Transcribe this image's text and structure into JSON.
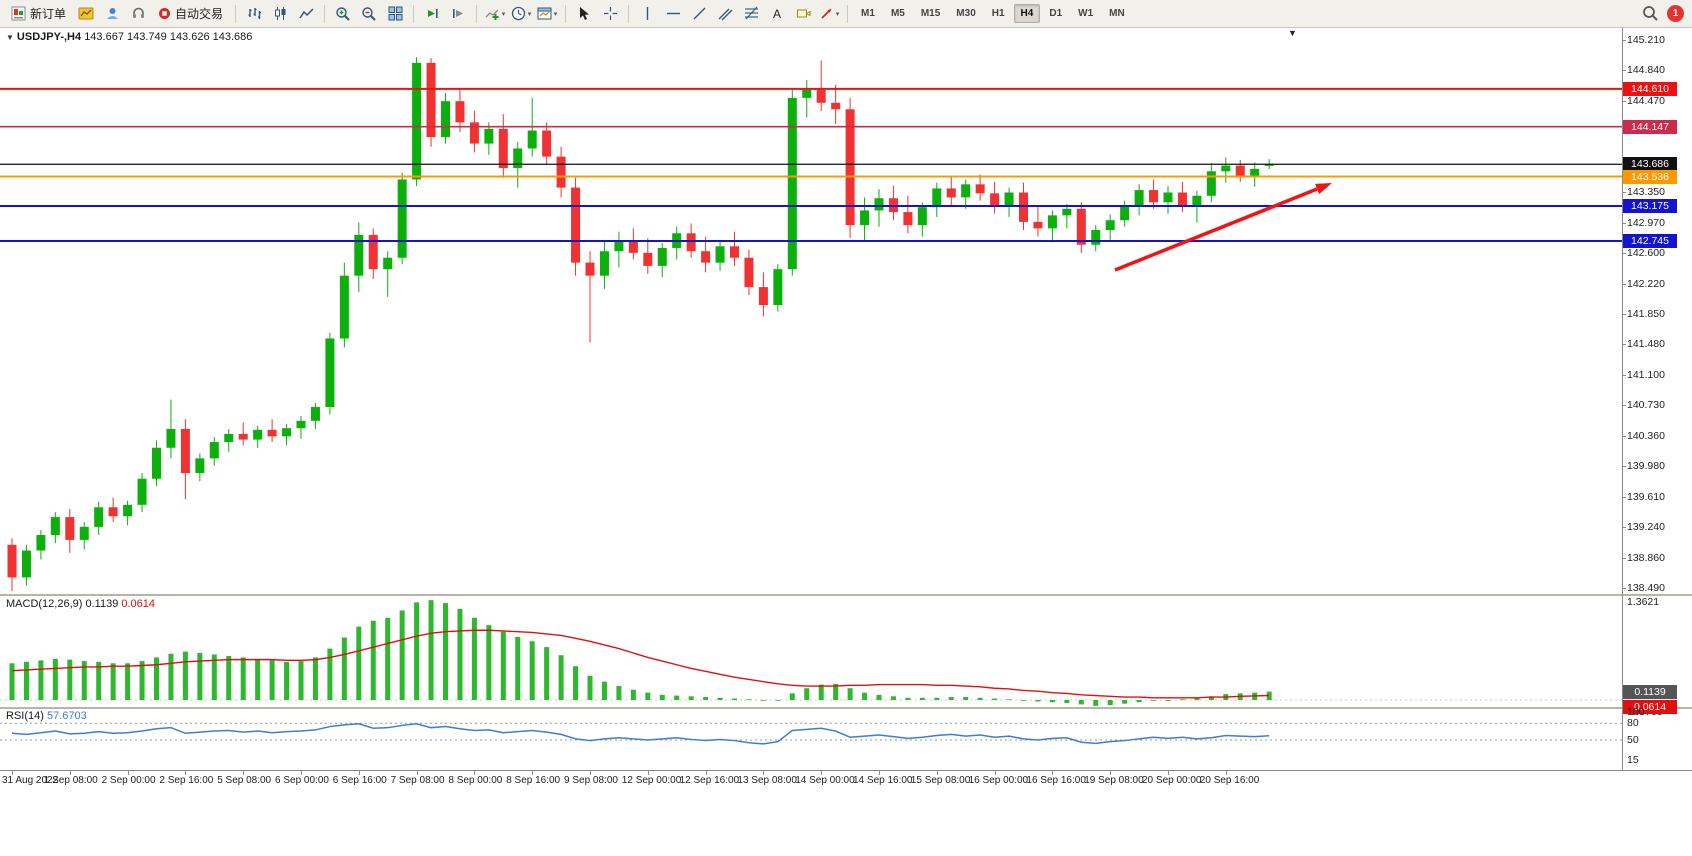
{
  "toolbar": {
    "new_order": "新订单",
    "auto_trading": "自动交易",
    "timeframes": [
      "M1",
      "M5",
      "M15",
      "M30",
      "H1",
      "H4",
      "D1",
      "W1",
      "MN"
    ],
    "active_timeframe": "H4",
    "notification_badge": "1"
  },
  "chart": {
    "title_symbol": "USDJPY-,H4",
    "title_ohlc": "143.667 143.749 143.626 143.686",
    "shift_marker": "▼",
    "price_axis_labels": [
      "145.210",
      "144.840",
      "144.470",
      "144.100",
      "143.730",
      "143.350",
      "142.970",
      "142.600",
      "142.220",
      "141.850",
      "141.480",
      "141.100",
      "140.730",
      "140.360",
      "139.980",
      "139.610",
      "139.240",
      "138.860",
      "138.490"
    ],
    "time_axis_labels": [
      "31 Aug 2022",
      "1 Sep 08:00",
      "2 Sep 00:00",
      "2 Sep 16:00",
      "5 Sep 08:00",
      "6 Sep 00:00",
      "6 Sep 16:00",
      "7 Sep 08:00",
      "8 Sep 00:00",
      "8 Sep 16:00",
      "9 Sep 08:00",
      "12 Sep 00:00",
      "12 Sep 16:00",
      "13 Sep 08:00",
      "14 Sep 00:00",
      "14 Sep 16:00",
      "15 Sep 08:00",
      "16 Sep 00:00",
      "16 Sep 16:00",
      "19 Sep 08:00",
      "20 Sep 00:00",
      "20 Sep 16:00"
    ],
    "hlines": [
      {
        "label": "144.610",
        "price": 144.61,
        "color": "#ee1111",
        "width": 2
      },
      {
        "label": "144.147",
        "price": 144.147,
        "color": "#cc2b4e",
        "width": 1.6
      },
      {
        "label": "143.686",
        "price": 143.686,
        "color": "#111111",
        "width": 1.2
      },
      {
        "label": "143.536",
        "price": 143.536,
        "color": "#ff9800",
        "width": 2
      },
      {
        "label": "143.175",
        "price": 143.175,
        "color": "#1414cc",
        "width": 2
      },
      {
        "label": "142.745",
        "price": 142.745,
        "color": "#1414cc",
        "width": 2
      }
    ],
    "trend_arrow_color": "#f01414"
  },
  "macd_panel": {
    "label": "MACD(12,26,9)",
    "value_main": "0.1139",
    "value_signal": "0.0614",
    "scale_max": "1.3621",
    "scale_min": "-0.0763"
  },
  "rsi_panel": {
    "label": "RSI(14)",
    "value": "57.6703",
    "scale_labels": [
      "100",
      "80",
      "50",
      "15"
    ],
    "levels": [
      80,
      50
    ]
  },
  "chart_data": {
    "type": "candlestick",
    "symbol": "USDJPY-",
    "timeframe": "H4",
    "price_range": [
      138.49,
      145.21
    ],
    "up_color": "#0caf0c",
    "down_color": "#f03232",
    "candles_ohlc": [
      [
        139.02,
        139.1,
        138.45,
        138.62
      ],
      [
        138.62,
        139.02,
        138.52,
        138.95
      ],
      [
        138.95,
        139.2,
        138.84,
        139.14
      ],
      [
        139.14,
        139.42,
        139.04,
        139.36
      ],
      [
        139.36,
        139.46,
        138.92,
        139.08
      ],
      [
        139.08,
        139.3,
        138.96,
        139.24
      ],
      [
        139.24,
        139.55,
        139.14,
        139.48
      ],
      [
        139.48,
        139.6,
        139.3,
        139.37
      ],
      [
        139.37,
        139.56,
        139.26,
        139.51
      ],
      [
        139.51,
        139.9,
        139.42,
        139.83
      ],
      [
        139.83,
        140.3,
        139.74,
        140.21
      ],
      [
        140.21,
        140.8,
        140.08,
        140.44
      ],
      [
        140.44,
        140.56,
        139.58,
        139.9
      ],
      [
        139.9,
        140.14,
        139.8,
        140.08
      ],
      [
        140.08,
        140.34,
        139.99,
        140.28
      ],
      [
        140.28,
        140.44,
        140.16,
        140.38
      ],
      [
        140.38,
        140.52,
        140.24,
        140.31
      ],
      [
        140.31,
        140.48,
        140.21,
        140.43
      ],
      [
        140.43,
        140.56,
        140.28,
        140.35
      ],
      [
        140.35,
        140.5,
        140.24,
        140.45
      ],
      [
        140.45,
        140.6,
        140.32,
        140.54
      ],
      [
        140.54,
        140.76,
        140.44,
        140.71
      ],
      [
        140.71,
        141.62,
        140.62,
        141.55
      ],
      [
        141.55,
        142.48,
        141.44,
        142.32
      ],
      [
        142.32,
        142.97,
        142.12,
        142.82
      ],
      [
        142.82,
        142.9,
        142.28,
        142.4
      ],
      [
        142.4,
        142.62,
        142.06,
        142.54
      ],
      [
        142.54,
        143.58,
        142.46,
        143.5
      ],
      [
        143.5,
        145.0,
        143.42,
        144.93
      ],
      [
        144.93,
        144.99,
        143.9,
        144.02
      ],
      [
        144.02,
        144.56,
        143.94,
        144.46
      ],
      [
        144.46,
        144.62,
        144.08,
        144.2
      ],
      [
        144.2,
        144.34,
        143.83,
        143.94
      ],
      [
        143.94,
        144.2,
        143.8,
        144.12
      ],
      [
        144.12,
        144.3,
        143.52,
        143.64
      ],
      [
        143.64,
        143.96,
        143.4,
        143.88
      ],
      [
        143.88,
        144.5,
        143.78,
        144.1
      ],
      [
        144.1,
        144.2,
        143.68,
        143.78
      ],
      [
        143.78,
        143.9,
        143.28,
        143.4
      ],
      [
        143.4,
        143.52,
        142.32,
        142.48
      ],
      [
        142.48,
        142.62,
        141.5,
        142.32
      ],
      [
        142.32,
        142.76,
        142.16,
        142.62
      ],
      [
        142.62,
        142.86,
        142.42,
        142.74
      ],
      [
        142.74,
        142.9,
        142.52,
        142.6
      ],
      [
        142.6,
        142.78,
        142.34,
        142.44
      ],
      [
        142.44,
        142.72,
        142.3,
        142.66
      ],
      [
        142.66,
        142.92,
        142.52,
        142.84
      ],
      [
        142.84,
        142.96,
        142.54,
        142.62
      ],
      [
        142.62,
        142.8,
        142.36,
        142.48
      ],
      [
        142.48,
        142.74,
        142.38,
        142.68
      ],
      [
        142.68,
        142.86,
        142.44,
        142.54
      ],
      [
        142.54,
        142.64,
        142.08,
        142.18
      ],
      [
        142.18,
        142.36,
        141.82,
        141.96
      ],
      [
        141.96,
        142.46,
        141.88,
        142.4
      ],
      [
        142.4,
        144.6,
        142.32,
        144.5
      ],
      [
        144.5,
        144.72,
        144.26,
        144.6
      ],
      [
        144.6,
        144.96,
        144.34,
        144.44
      ],
      [
        144.44,
        144.66,
        144.18,
        144.36
      ],
      [
        144.36,
        144.5,
        142.78,
        142.94
      ],
      [
        142.94,
        143.28,
        142.74,
        143.12
      ],
      [
        143.12,
        143.38,
        142.92,
        143.27
      ],
      [
        143.27,
        143.42,
        143.0,
        143.1
      ],
      [
        143.1,
        143.3,
        142.84,
        142.94
      ],
      [
        142.94,
        143.22,
        142.8,
        143.16
      ],
      [
        143.16,
        143.46,
        143.04,
        143.39
      ],
      [
        143.39,
        143.54,
        143.18,
        143.28
      ],
      [
        143.28,
        143.5,
        143.14,
        143.44
      ],
      [
        143.44,
        143.56,
        143.24,
        143.33
      ],
      [
        143.33,
        143.47,
        143.08,
        143.18
      ],
      [
        143.18,
        143.4,
        143.04,
        143.34
      ],
      [
        143.34,
        143.46,
        142.88,
        142.98
      ],
      [
        142.98,
        143.17,
        142.8,
        142.9
      ],
      [
        142.9,
        143.12,
        142.73,
        143.06
      ],
      [
        143.06,
        143.2,
        142.9,
        143.14
      ],
      [
        143.14,
        143.22,
        142.6,
        142.7
      ],
      [
        142.7,
        142.94,
        142.62,
        142.88
      ],
      [
        142.88,
        143.07,
        142.76,
        143.0
      ],
      [
        143.0,
        143.24,
        142.92,
        143.17
      ],
      [
        143.17,
        143.44,
        143.06,
        143.37
      ],
      [
        143.37,
        143.5,
        143.14,
        143.22
      ],
      [
        143.22,
        143.42,
        143.08,
        143.34
      ],
      [
        143.34,
        143.47,
        143.1,
        143.17
      ],
      [
        143.17,
        143.36,
        142.97,
        143.3
      ],
      [
        143.3,
        143.7,
        143.22,
        143.6
      ],
      [
        143.6,
        143.77,
        143.46,
        143.67
      ],
      [
        143.67,
        143.74,
        143.47,
        143.54
      ],
      [
        143.54,
        143.71,
        143.41,
        143.63
      ],
      [
        143.667,
        143.749,
        143.626,
        143.686
      ]
    ],
    "macd": {
      "hist_color": "#2db82d",
      "signal_color": "#e01010",
      "histogram": [
        0.5,
        0.52,
        0.54,
        0.56,
        0.55,
        0.53,
        0.52,
        0.5,
        0.5,
        0.53,
        0.58,
        0.63,
        0.66,
        0.64,
        0.62,
        0.6,
        0.58,
        0.56,
        0.54,
        0.52,
        0.53,
        0.58,
        0.7,
        0.85,
        1.0,
        1.08,
        1.12,
        1.22,
        1.33,
        1.36,
        1.32,
        1.24,
        1.12,
        1.02,
        0.93,
        0.86,
        0.8,
        0.72,
        0.61,
        0.46,
        0.33,
        0.25,
        0.19,
        0.14,
        0.1,
        0.07,
        0.06,
        0.05,
        0.04,
        0.03,
        0.02,
        0.01,
        -0.01,
        0.0,
        0.09,
        0.16,
        0.21,
        0.22,
        0.16,
        0.1,
        0.07,
        0.05,
        0.03,
        0.03,
        0.03,
        0.04,
        0.04,
        0.03,
        0.02,
        0.01,
        0.0,
        -0.02,
        -0.03,
        -0.04,
        -0.06,
        -0.08,
        -0.07,
        -0.05,
        -0.03,
        -0.01,
        0.0,
        0.01,
        0.02,
        0.05,
        0.08,
        0.09,
        0.1,
        0.114
      ],
      "signal": [
        0.4,
        0.41,
        0.42,
        0.43,
        0.44,
        0.45,
        0.45,
        0.46,
        0.46,
        0.47,
        0.48,
        0.5,
        0.52,
        0.53,
        0.54,
        0.55,
        0.55,
        0.55,
        0.55,
        0.54,
        0.54,
        0.55,
        0.58,
        0.62,
        0.67,
        0.72,
        0.77,
        0.82,
        0.87,
        0.91,
        0.93,
        0.94,
        0.95,
        0.95,
        0.94,
        0.93,
        0.92,
        0.9,
        0.88,
        0.84,
        0.8,
        0.75,
        0.7,
        0.64,
        0.58,
        0.53,
        0.48,
        0.43,
        0.39,
        0.35,
        0.31,
        0.28,
        0.25,
        0.22,
        0.2,
        0.19,
        0.19,
        0.19,
        0.2,
        0.2,
        0.21,
        0.21,
        0.21,
        0.21,
        0.2,
        0.2,
        0.19,
        0.18,
        0.16,
        0.15,
        0.13,
        0.12,
        0.1,
        0.09,
        0.07,
        0.06,
        0.05,
        0.04,
        0.04,
        0.03,
        0.03,
        0.03,
        0.03,
        0.04,
        0.04,
        0.05,
        0.055,
        0.0614
      ]
    },
    "rsi": {
      "color": "#3b7dd8",
      "values": [
        62,
        60,
        63,
        66,
        61,
        62,
        65,
        62,
        63,
        66,
        70,
        72,
        62,
        64,
        66,
        67,
        64,
        66,
        63,
        65,
        66,
        68,
        74,
        77,
        79,
        71,
        72,
        76,
        79,
        72,
        74,
        70,
        67,
        68,
        63,
        65,
        67,
        64,
        60,
        52,
        49,
        52,
        54,
        52,
        50,
        52,
        54,
        51,
        49,
        51,
        49,
        45,
        43,
        47,
        67,
        69,
        71,
        66,
        55,
        57,
        59,
        56,
        53,
        55,
        58,
        60,
        57,
        59,
        55,
        57,
        52,
        50,
        53,
        54,
        46,
        44,
        47,
        49,
        52,
        55,
        53,
        55,
        52,
        54,
        58,
        57,
        56,
        57.67
      ]
    }
  }
}
